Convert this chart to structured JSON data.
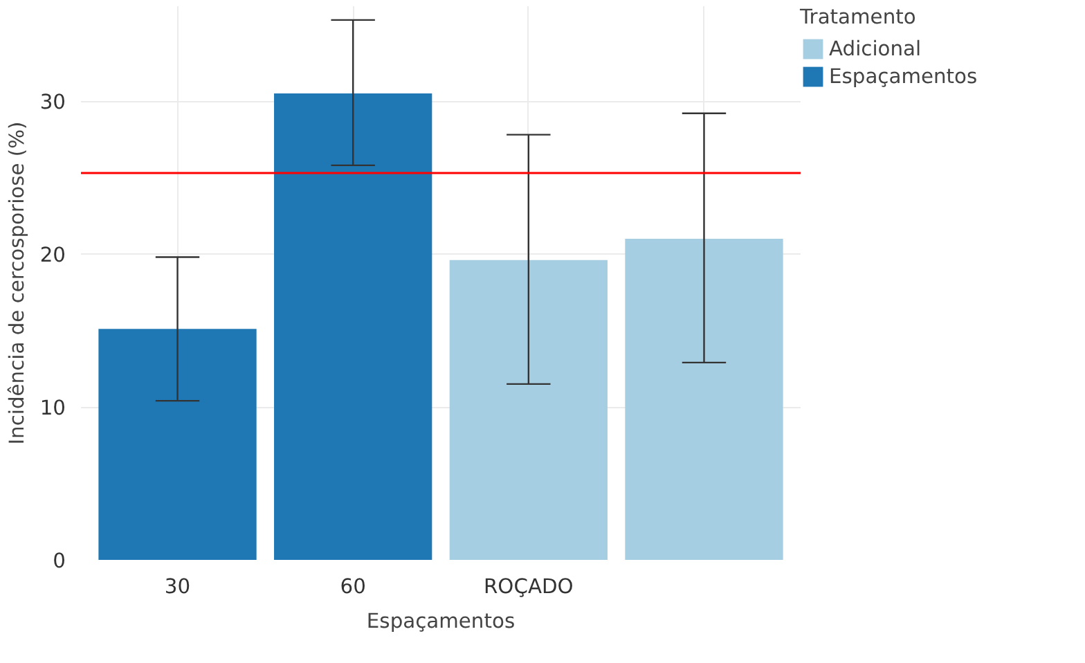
{
  "chart_data": {
    "type": "bar",
    "xlabel": "Espaçamentos",
    "ylabel": "Incidência de cercosporiose (%)",
    "legend_title": "Tratamento",
    "categories": [
      "30",
      "60",
      "ROÇADO",
      null
    ],
    "series": [
      {
        "name": "Adicional",
        "color": "#a6cee3",
        "values": [
          null,
          null,
          19.6,
          21.0
        ],
        "errors": [
          null,
          null,
          [
            11.5,
            27.8
          ],
          [
            12.9,
            29.2
          ]
        ]
      },
      {
        "name": "Espaçamentos",
        "color": "#1f78b4",
        "values": [
          15.1,
          30.5,
          null,
          null
        ],
        "errors": [
          [
            10.4,
            19.8
          ],
          [
            25.8,
            35.3
          ],
          null,
          null
        ]
      }
    ],
    "ylim": [
      0,
      36.2
    ],
    "yticks": [
      0,
      10,
      20,
      30
    ],
    "grid": true,
    "legend": "right",
    "ref_lines": [
      {
        "axis": "y",
        "value": 25.3,
        "color": "#ff0000"
      }
    ]
  }
}
